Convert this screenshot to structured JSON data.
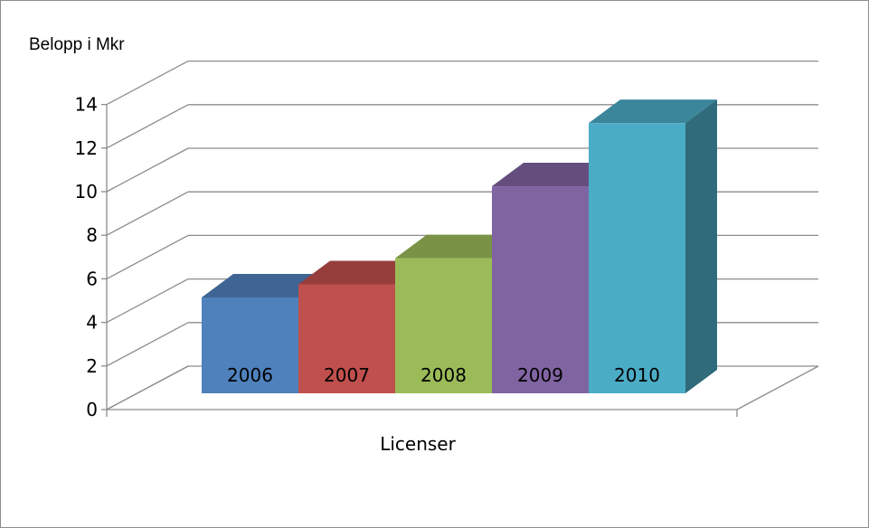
{
  "chart_data": {
    "type": "bar",
    "title": "",
    "ylabel": "Belopp i Mkr",
    "xlabel": "Licenser",
    "ylim": [
      0,
      14
    ],
    "yticks": [
      "0",
      "2",
      "4",
      "6",
      "8",
      "10",
      "12",
      "14"
    ],
    "categories": [
      "2006",
      "2007",
      "2008",
      "2009",
      "2010"
    ],
    "values": [
      4.4,
      5.0,
      6.2,
      9.5,
      12.4
    ],
    "colors": [
      "#4f81bd",
      "#c0504d",
      "#9bbb59",
      "#8064a2",
      "#4bacc6"
    ],
    "grid": true,
    "three_d": true
  }
}
